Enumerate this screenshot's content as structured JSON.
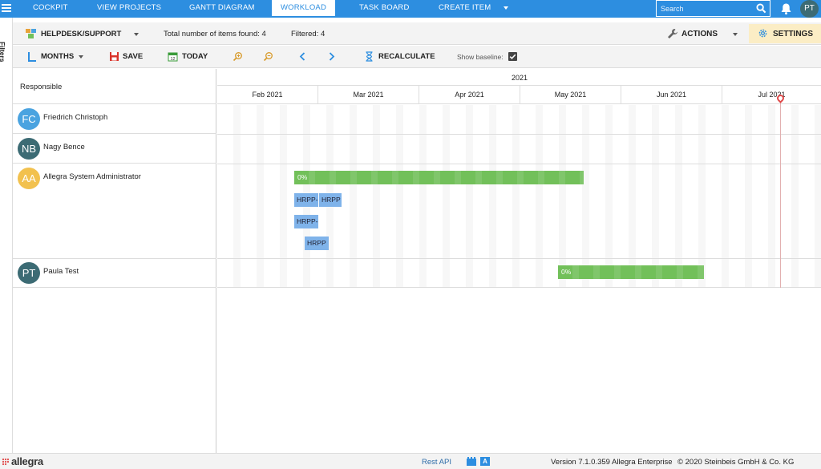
{
  "nav": {
    "items": [
      {
        "label": "COCKPIT"
      },
      {
        "label": "VIEW PROJECTS"
      },
      {
        "label": "GANTT DIAGRAM"
      },
      {
        "label": "WORKLOAD"
      },
      {
        "label": "TASK BOARD"
      },
      {
        "label": "CREATE ITEM"
      }
    ],
    "active": "WORKLOAD",
    "search_placeholder": "Search",
    "user_initials": "PT"
  },
  "filters_label": "Filters",
  "context": {
    "project": "HELPDESK/SUPPORT",
    "total_label": "Total number of items found: 4",
    "filtered_label": "Filtered: 4",
    "actions_label": "ACTIONS",
    "settings_label": "SETTINGS"
  },
  "toolbar": {
    "scale_label": "MONTHS",
    "save_label": "SAVE",
    "today_label": "TODAY",
    "today_icon_day": "12",
    "recalculate_label": "RECALCULATE",
    "baseline_label": "Show baseline:",
    "baseline_checked": true
  },
  "grid": {
    "responsible_header": "Responsible",
    "year": "2021",
    "months": [
      "Feb 2021",
      "Mar 2021",
      "Apr 2021",
      "May 2021",
      "Jun 2021",
      "Jul 2021"
    ],
    "rows": [
      {
        "initials": "FC",
        "name": "Friedrich Christoph",
        "avatar_color": "#4aa3e0"
      },
      {
        "initials": "NB",
        "name": "Nagy Bence",
        "avatar_color": "#3c6b74"
      },
      {
        "initials": "AA",
        "name": "Allegra System Administrator",
        "avatar_color": "#f2c14e"
      },
      {
        "initials": "PT",
        "name": "Paula Test",
        "avatar_color": "#3c6b74"
      }
    ],
    "bars": {
      "aa_summary": "0%",
      "aa_task1": "HRPP-",
      "aa_task2": "HRPP",
      "aa_task3": "HRPP-",
      "aa_task4": "HRPP",
      "pt_summary": "0%"
    }
  },
  "footer": {
    "brand": "allegra",
    "rest_api": "Rest API",
    "version": "Version 7.1.0.359 Allegra Enterprise",
    "copyright": "© 2020 Steinbeis GmbH & Co. KG"
  },
  "colors": {
    "nav_blue": "#2d8ee0",
    "bar_green": "#72c05a",
    "bar_blue": "#7fb3ea",
    "settings_bg": "#fbedc5",
    "today_red": "#e04848"
  }
}
